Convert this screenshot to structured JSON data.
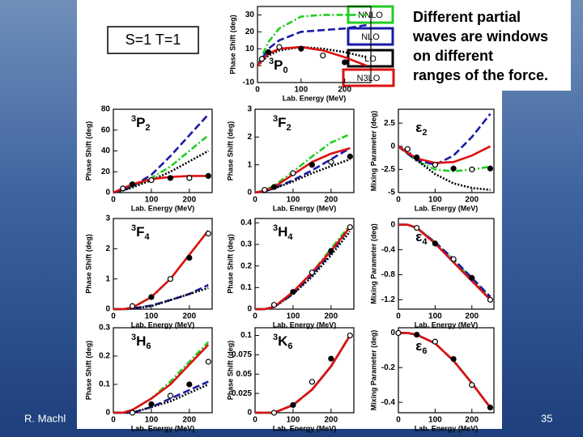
{
  "spin_label": "S=1  T=1",
  "note": [
    "Different partial",
    "waves are windows",
    "on different",
    "ranges of the force."
  ],
  "footer": {
    "author": "R. Machl",
    "page": "35"
  },
  "legend": [
    {
      "name": "NNLO",
      "color": "#22cc22",
      "dash": "8 3 2 3"
    },
    {
      "name": "NLO",
      "color": "#1a1aa8",
      "dash": "9 4"
    },
    {
      "name": "LO",
      "color": "#000000",
      "dash": "2 2"
    },
    {
      "name": "N3LO",
      "color": "#dd1111",
      "dash": "none"
    }
  ],
  "data_color": "#000000",
  "chart_data": [
    {
      "type": "line",
      "label": {
        "sup": "3",
        "main": "P",
        "sub": "0"
      },
      "xlabel": "Lab. Energy (MeV)",
      "ylabel": "Phase Shift (deg)",
      "xlim": [
        0,
        260
      ],
      "xticks": [
        0,
        100,
        200
      ],
      "ylim": [
        -10,
        35
      ],
      "yticks": [
        -10,
        0,
        10,
        20,
        30
      ],
      "x": [
        0,
        25,
        50,
        100,
        150,
        200,
        250
      ],
      "series": [
        {
          "values": [
            0,
            14,
            22,
            29,
            30,
            30,
            30
          ]
        },
        {
          "values": [
            0,
            10,
            15,
            20,
            21,
            22,
            24
          ]
        },
        {
          "values": [
            0,
            6,
            9,
            11,
            10,
            8,
            5
          ]
        },
        {
          "values": [
            0,
            7,
            10,
            11,
            9,
            5,
            0
          ]
        }
      ],
      "data": {
        "x": [
          10,
          25,
          50,
          100,
          150,
          200
        ],
        "y": [
          4,
          8,
          11,
          10,
          6,
          2
        ]
      }
    },
    {
      "type": "line",
      "label": {
        "sup": "3",
        "main": "P",
        "sub": "2"
      },
      "xlabel": "Lab. Energy (MeV)",
      "ylabel": "Phase Shift (deg)",
      "xlim": [
        0,
        260
      ],
      "xticks": [
        0,
        100,
        200
      ],
      "ylim": [
        0,
        80
      ],
      "yticks": [
        0,
        20,
        40,
        60,
        80
      ],
      "x": [
        0,
        25,
        50,
        100,
        150,
        200,
        250
      ],
      "series": [
        {
          "values": [
            0,
            2,
            6,
            14,
            25,
            40,
            55
          ]
        },
        {
          "values": [
            0,
            2,
            6,
            17,
            35,
            55,
            75
          ]
        },
        {
          "values": [
            0,
            2,
            5,
            12,
            20,
            30,
            40
          ]
        },
        {
          "values": [
            0,
            4,
            8,
            13,
            15,
            16,
            16
          ]
        }
      ],
      "data": {
        "x": [
          25,
          50,
          100,
          150,
          200,
          250
        ],
        "y": [
          4,
          8,
          12,
          14,
          14,
          16
        ]
      }
    },
    {
      "type": "line",
      "label": {
        "sup": "3",
        "main": "F",
        "sub": "2"
      },
      "xlabel": "Lab. Energy (MeV)",
      "ylabel": "Phase Shift (deg)",
      "xlim": [
        0,
        260
      ],
      "xticks": [
        0,
        100,
        200
      ],
      "ylim": [
        0,
        3
      ],
      "yticks": [
        0,
        1,
        2,
        3
      ],
      "x": [
        0,
        25,
        50,
        100,
        150,
        200,
        250
      ],
      "series": [
        {
          "values": [
            0,
            0.08,
            0.25,
            0.75,
            1.3,
            1.8,
            2.1
          ]
        },
        {
          "values": [
            0,
            0.05,
            0.15,
            0.45,
            0.8,
            1.2,
            1.6
          ]
        },
        {
          "values": [
            0,
            0.05,
            0.15,
            0.4,
            0.7,
            0.95,
            1.2
          ]
        },
        {
          "values": [
            0,
            0.07,
            0.2,
            0.65,
            1.1,
            1.4,
            1.6
          ]
        }
      ],
      "data": {
        "x": [
          25,
          50,
          100,
          150,
          200,
          250
        ],
        "y": [
          0.1,
          0.2,
          0.7,
          1.0,
          1.1,
          1.3
        ]
      }
    },
    {
      "type": "line",
      "label": {
        "sup": "",
        "main": "ε",
        "sub": "2"
      },
      "xlabel": "Lab. Energy (MeV)",
      "ylabel": "Mixing Parameter (deg)",
      "xlim": [
        0,
        260
      ],
      "xticks": [
        0,
        100,
        200
      ],
      "ylim": [
        -5,
        4
      ],
      "yticks": [
        -5,
        -2.5,
        0,
        2.5
      ],
      "x": [
        0,
        25,
        50,
        100,
        150,
        200,
        250
      ],
      "series": [
        {
          "values": [
            0,
            -0.8,
            -1.6,
            -2.5,
            -2.7,
            -2.5,
            -2.2
          ]
        },
        {
          "values": [
            0,
            -0.8,
            -1.5,
            -2,
            -1,
            1,
            3.5
          ]
        },
        {
          "values": [
            0,
            -0.5,
            -1.5,
            -3,
            -4,
            -4.5,
            -4.7
          ]
        },
        {
          "values": [
            0,
            -0.7,
            -1.3,
            -1.8,
            -1.7,
            -1,
            0
          ]
        }
      ],
      "data": {
        "x": [
          25,
          50,
          100,
          150,
          200,
          250
        ],
        "y": [
          -0.3,
          -1.2,
          -2.0,
          -2.4,
          -2.5,
          -2.4
        ]
      }
    },
    {
      "type": "line",
      "label": {
        "sup": "3",
        "main": "F",
        "sub": "4"
      },
      "xlabel": "Lab. Energy (MeV)",
      "ylabel": "Phase Shift (deg)",
      "xlim": [
        0,
        260
      ],
      "xticks": [
        0,
        100,
        200
      ],
      "ylim": [
        0,
        3
      ],
      "yticks": [
        0,
        1,
        2,
        3
      ],
      "x": [
        0,
        25,
        50,
        100,
        150,
        200,
        250
      ],
      "series": [
        {
          "values": [
            0,
            0,
            0.05,
            0.4,
            1.0,
            1.8,
            2.6
          ]
        },
        {
          "values": [
            0,
            0,
            0.02,
            0.12,
            0.3,
            0.5,
            0.8
          ]
        },
        {
          "values": [
            0,
            0,
            0.02,
            0.1,
            0.3,
            0.5,
            0.7
          ]
        },
        {
          "values": [
            0,
            0,
            0.05,
            0.4,
            1.0,
            1.8,
            2.6
          ]
        }
      ],
      "data": {
        "x": [
          50,
          100,
          150,
          200,
          250
        ],
        "y": [
          0.1,
          0.4,
          1.0,
          1.7,
          2.5
        ]
      }
    },
    {
      "type": "line",
      "label": {
        "sup": "3",
        "main": "H",
        "sub": "4"
      },
      "xlabel": "Lab. Energy (MeV)",
      "ylabel": "Phase Shift (deg)",
      "xlim": [
        0,
        260
      ],
      "xticks": [
        0,
        100,
        200
      ],
      "ylim": [
        0,
        0.42
      ],
      "yticks": [
        0,
        0.1,
        0.2,
        0.3,
        0.4
      ],
      "x": [
        0,
        25,
        50,
        100,
        150,
        200,
        250
      ],
      "series": [
        {
          "values": [
            0,
            0,
            0.01,
            0.08,
            0.17,
            0.28,
            0.39
          ]
        },
        {
          "values": [
            0,
            0,
            0.01,
            0.07,
            0.16,
            0.26,
            0.38
          ]
        },
        {
          "values": [
            0,
            0,
            0.01,
            0.07,
            0.15,
            0.25,
            0.36
          ]
        },
        {
          "values": [
            0,
            0,
            0.01,
            0.08,
            0.17,
            0.27,
            0.38
          ]
        }
      ],
      "data": {
        "x": [
          50,
          100,
          150,
          200,
          250
        ],
        "y": [
          0.02,
          0.08,
          0.17,
          0.27,
          0.38
        ]
      }
    },
    {
      "type": "line",
      "label": {
        "sup": "",
        "main": "ε",
        "sub": "4"
      },
      "xlabel": "Lab. Energy (MeV)",
      "ylabel": "Mixing Parameter (deg)",
      "xlim": [
        0,
        260
      ],
      "xticks": [
        0,
        100,
        200
      ],
      "ylim": [
        -1.35,
        0.1
      ],
      "yticks": [
        -1.2,
        -0.8,
        -0.4,
        0
      ],
      "x": [
        0,
        25,
        50,
        100,
        150,
        200,
        250
      ],
      "series": [
        {
          "values": [
            0,
            0,
            -0.05,
            -0.28,
            -0.56,
            -0.87,
            -1.17
          ]
        },
        {
          "values": [
            0,
            0,
            -0.05,
            -0.28,
            -0.55,
            -0.85,
            -1.15
          ]
        },
        {
          "values": [
            0,
            0,
            -0.05,
            -0.3,
            -0.6,
            -0.9,
            -1.2
          ]
        },
        {
          "values": [
            0,
            0,
            -0.05,
            -0.3,
            -0.6,
            -0.9,
            -1.2
          ]
        }
      ],
      "data": {
        "x": [
          50,
          100,
          150,
          200,
          250
        ],
        "y": [
          -0.05,
          -0.3,
          -0.55,
          -0.85,
          -1.2
        ]
      }
    },
    {
      "type": "line",
      "label": {
        "sup": "3",
        "main": "H",
        "sub": "6"
      },
      "xlabel": "Lab. Energy (MeV)",
      "ylabel": "Phase Shift (deg)",
      "xlim": [
        0,
        260
      ],
      "xticks": [
        0,
        100,
        200
      ],
      "ylim": [
        0,
        0.3
      ],
      "yticks": [
        0,
        0.1,
        0.2,
        0.3
      ],
      "x": [
        0,
        25,
        50,
        100,
        150,
        200,
        250
      ],
      "series": [
        {
          "values": [
            0,
            0,
            0.01,
            0.05,
            0.11,
            0.18,
            0.25
          ]
        },
        {
          "values": [
            0,
            0,
            0,
            0.02,
            0.05,
            0.08,
            0.11
          ]
        },
        {
          "values": [
            0,
            0,
            0,
            0.02,
            0.04,
            0.07,
            0.1
          ]
        },
        {
          "values": [
            0,
            0,
            0.01,
            0.05,
            0.1,
            0.17,
            0.24
          ]
        }
      ],
      "data": {
        "x": [
          50,
          100,
          150,
          200,
          250
        ],
        "y": [
          0.0,
          0.03,
          0.06,
          0.1,
          0.18
        ]
      }
    },
    {
      "type": "line",
      "label": {
        "sup": "3",
        "main": "K",
        "sub": "6"
      },
      "xlabel": "Lab. Energy (MeV)",
      "ylabel": "Phase Shift (deg)",
      "xlim": [
        0,
        260
      ],
      "xticks": [
        0,
        100,
        200
      ],
      "ylim": [
        0,
        0.11
      ],
      "yticks": [
        0,
        0.025,
        0.05,
        0.075,
        0.1
      ],
      "x": [
        0,
        25,
        50,
        100,
        150,
        200,
        250
      ],
      "series": [
        {
          "values": [
            0,
            0,
            0,
            0.01,
            0.03,
            0.06,
            0.1
          ]
        },
        {
          "values": [
            0,
            0,
            0,
            0.01,
            0.03,
            0.06,
            0.1
          ]
        },
        {
          "values": [
            0,
            0,
            0,
            0.01,
            0.03,
            0.06,
            0.1
          ]
        },
        {
          "values": [
            0,
            0,
            0,
            0.01,
            0.03,
            0.06,
            0.1
          ]
        }
      ],
      "data": {
        "x": [
          50,
          100,
          150,
          200,
          250
        ],
        "y": [
          0,
          0.01,
          0.04,
          0.07,
          0.1
        ]
      }
    },
    {
      "type": "line",
      "label": {
        "sup": "",
        "main": "ε",
        "sub": "6"
      },
      "xlabel": "Lab. Energy (MeV)",
      "ylabel": "Mixing Parameter (deg)",
      "xlim": [
        0,
        260
      ],
      "xticks": [
        0,
        100,
        200
      ],
      "ylim": [
        -0.46,
        0.03
      ],
      "yticks": [
        -0.4,
        -0.2,
        0
      ],
      "x": [
        0,
        25,
        50,
        100,
        150,
        200,
        250
      ],
      "series": [
        {
          "values": [
            0,
            0,
            -0.01,
            -0.06,
            -0.16,
            -0.29,
            -0.43
          ]
        },
        {
          "values": [
            0,
            0,
            -0.01,
            -0.06,
            -0.16,
            -0.29,
            -0.43
          ]
        },
        {
          "values": [
            0,
            0,
            -0.01,
            -0.06,
            -0.16,
            -0.29,
            -0.43
          ]
        },
        {
          "values": [
            0,
            0,
            -0.01,
            -0.06,
            -0.16,
            -0.29,
            -0.43
          ]
        }
      ],
      "data": {
        "x": [
          0,
          50,
          100,
          150,
          200,
          250
        ],
        "y": [
          0,
          -0.01,
          -0.05,
          -0.15,
          -0.3,
          -0.43
        ]
      }
    }
  ]
}
